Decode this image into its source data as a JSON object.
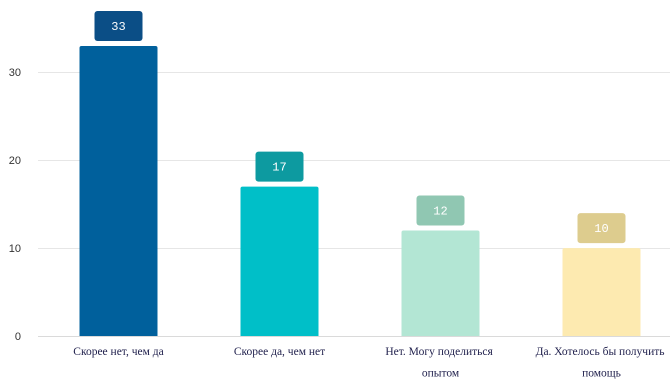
{
  "chart_data": {
    "type": "bar",
    "categories": [
      "Скорее нет, чем да",
      "Скорее да, чем нет",
      "Нет. Могу поделиться опытом",
      "Да. Хотелось бы получить помощь"
    ],
    "values": [
      33,
      17,
      12,
      10
    ],
    "yticks": [
      0,
      10,
      20,
      30
    ],
    "ylim": [
      0,
      38
    ],
    "grid": true,
    "bar_colors": [
      "#00609c",
      "#00bfc8",
      "#b3e6d4",
      "#fdeab0"
    ],
    "value_label_colors": [
      "#0b4e86",
      "#0d9aa0",
      "#90c7b2",
      "#ddcc8e"
    ]
  }
}
